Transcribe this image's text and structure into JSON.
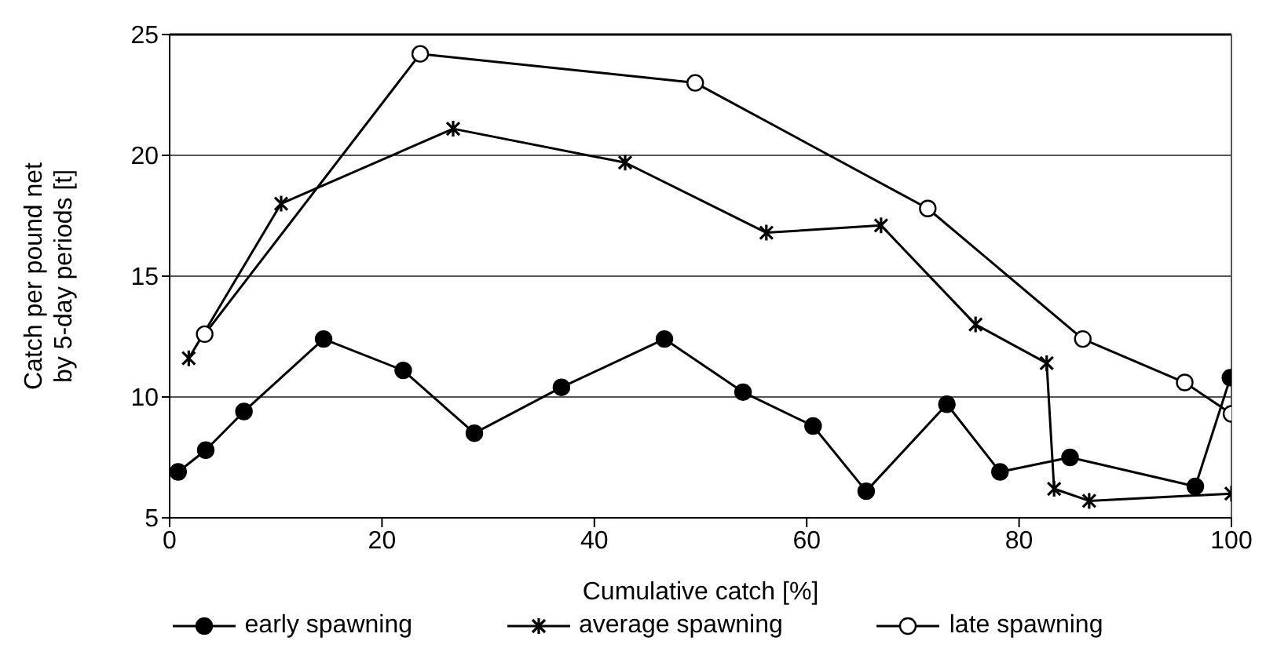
{
  "chart_data": {
    "type": "line",
    "xlabel": "Cumulative catch [%]",
    "ylabel": "Catch per pound net\nby 5-day periods [t]",
    "xlim": [
      0,
      100
    ],
    "xticks": [
      0,
      20,
      40,
      60,
      80,
      100
    ],
    "ylim": [
      5,
      25
    ],
    "yticks": [
      5,
      10,
      15,
      20,
      25
    ],
    "grid": "y",
    "legend": "bottom",
    "line_style": "solid",
    "series": [
      {
        "name": "early spawning",
        "color": "#000000",
        "marker": "circle",
        "x": [
          0.8,
          3.4,
          7,
          14.5,
          22,
          28.7,
          36.9,
          46.6,
          54,
          60.6,
          65.6,
          73.2,
          78.2,
          84.8,
          96.6,
          99.9
        ],
        "values": [
          6.9,
          7.8,
          9.4,
          12.4,
          11.1,
          8.5,
          10.4,
          12.4,
          10.2,
          8.8,
          6.1,
          9.7,
          6.9,
          7.5,
          6.3,
          10.8
        ]
      },
      {
        "name": "average spawning",
        "color": "#000000",
        "marker": "cross",
        "x": [
          1.8,
          10.5,
          26.7,
          42.9,
          56.2,
          67,
          75.9,
          82.6,
          83.3,
          86.6,
          100
        ],
        "values": [
          11.6,
          18,
          21.1,
          19.7,
          16.8,
          17.1,
          13,
          11.4,
          6.2,
          5.7,
          6
        ]
      },
      {
        "name": "late spawning",
        "color": "#000000",
        "marker": "circle",
        "x": [
          3.3,
          23.6,
          49.5,
          71.4,
          86,
          95.6,
          100
        ],
        "values": [
          12.6,
          24.2,
          23,
          17.8,
          12.4,
          10.6,
          9.3
        ]
      }
    ]
  }
}
